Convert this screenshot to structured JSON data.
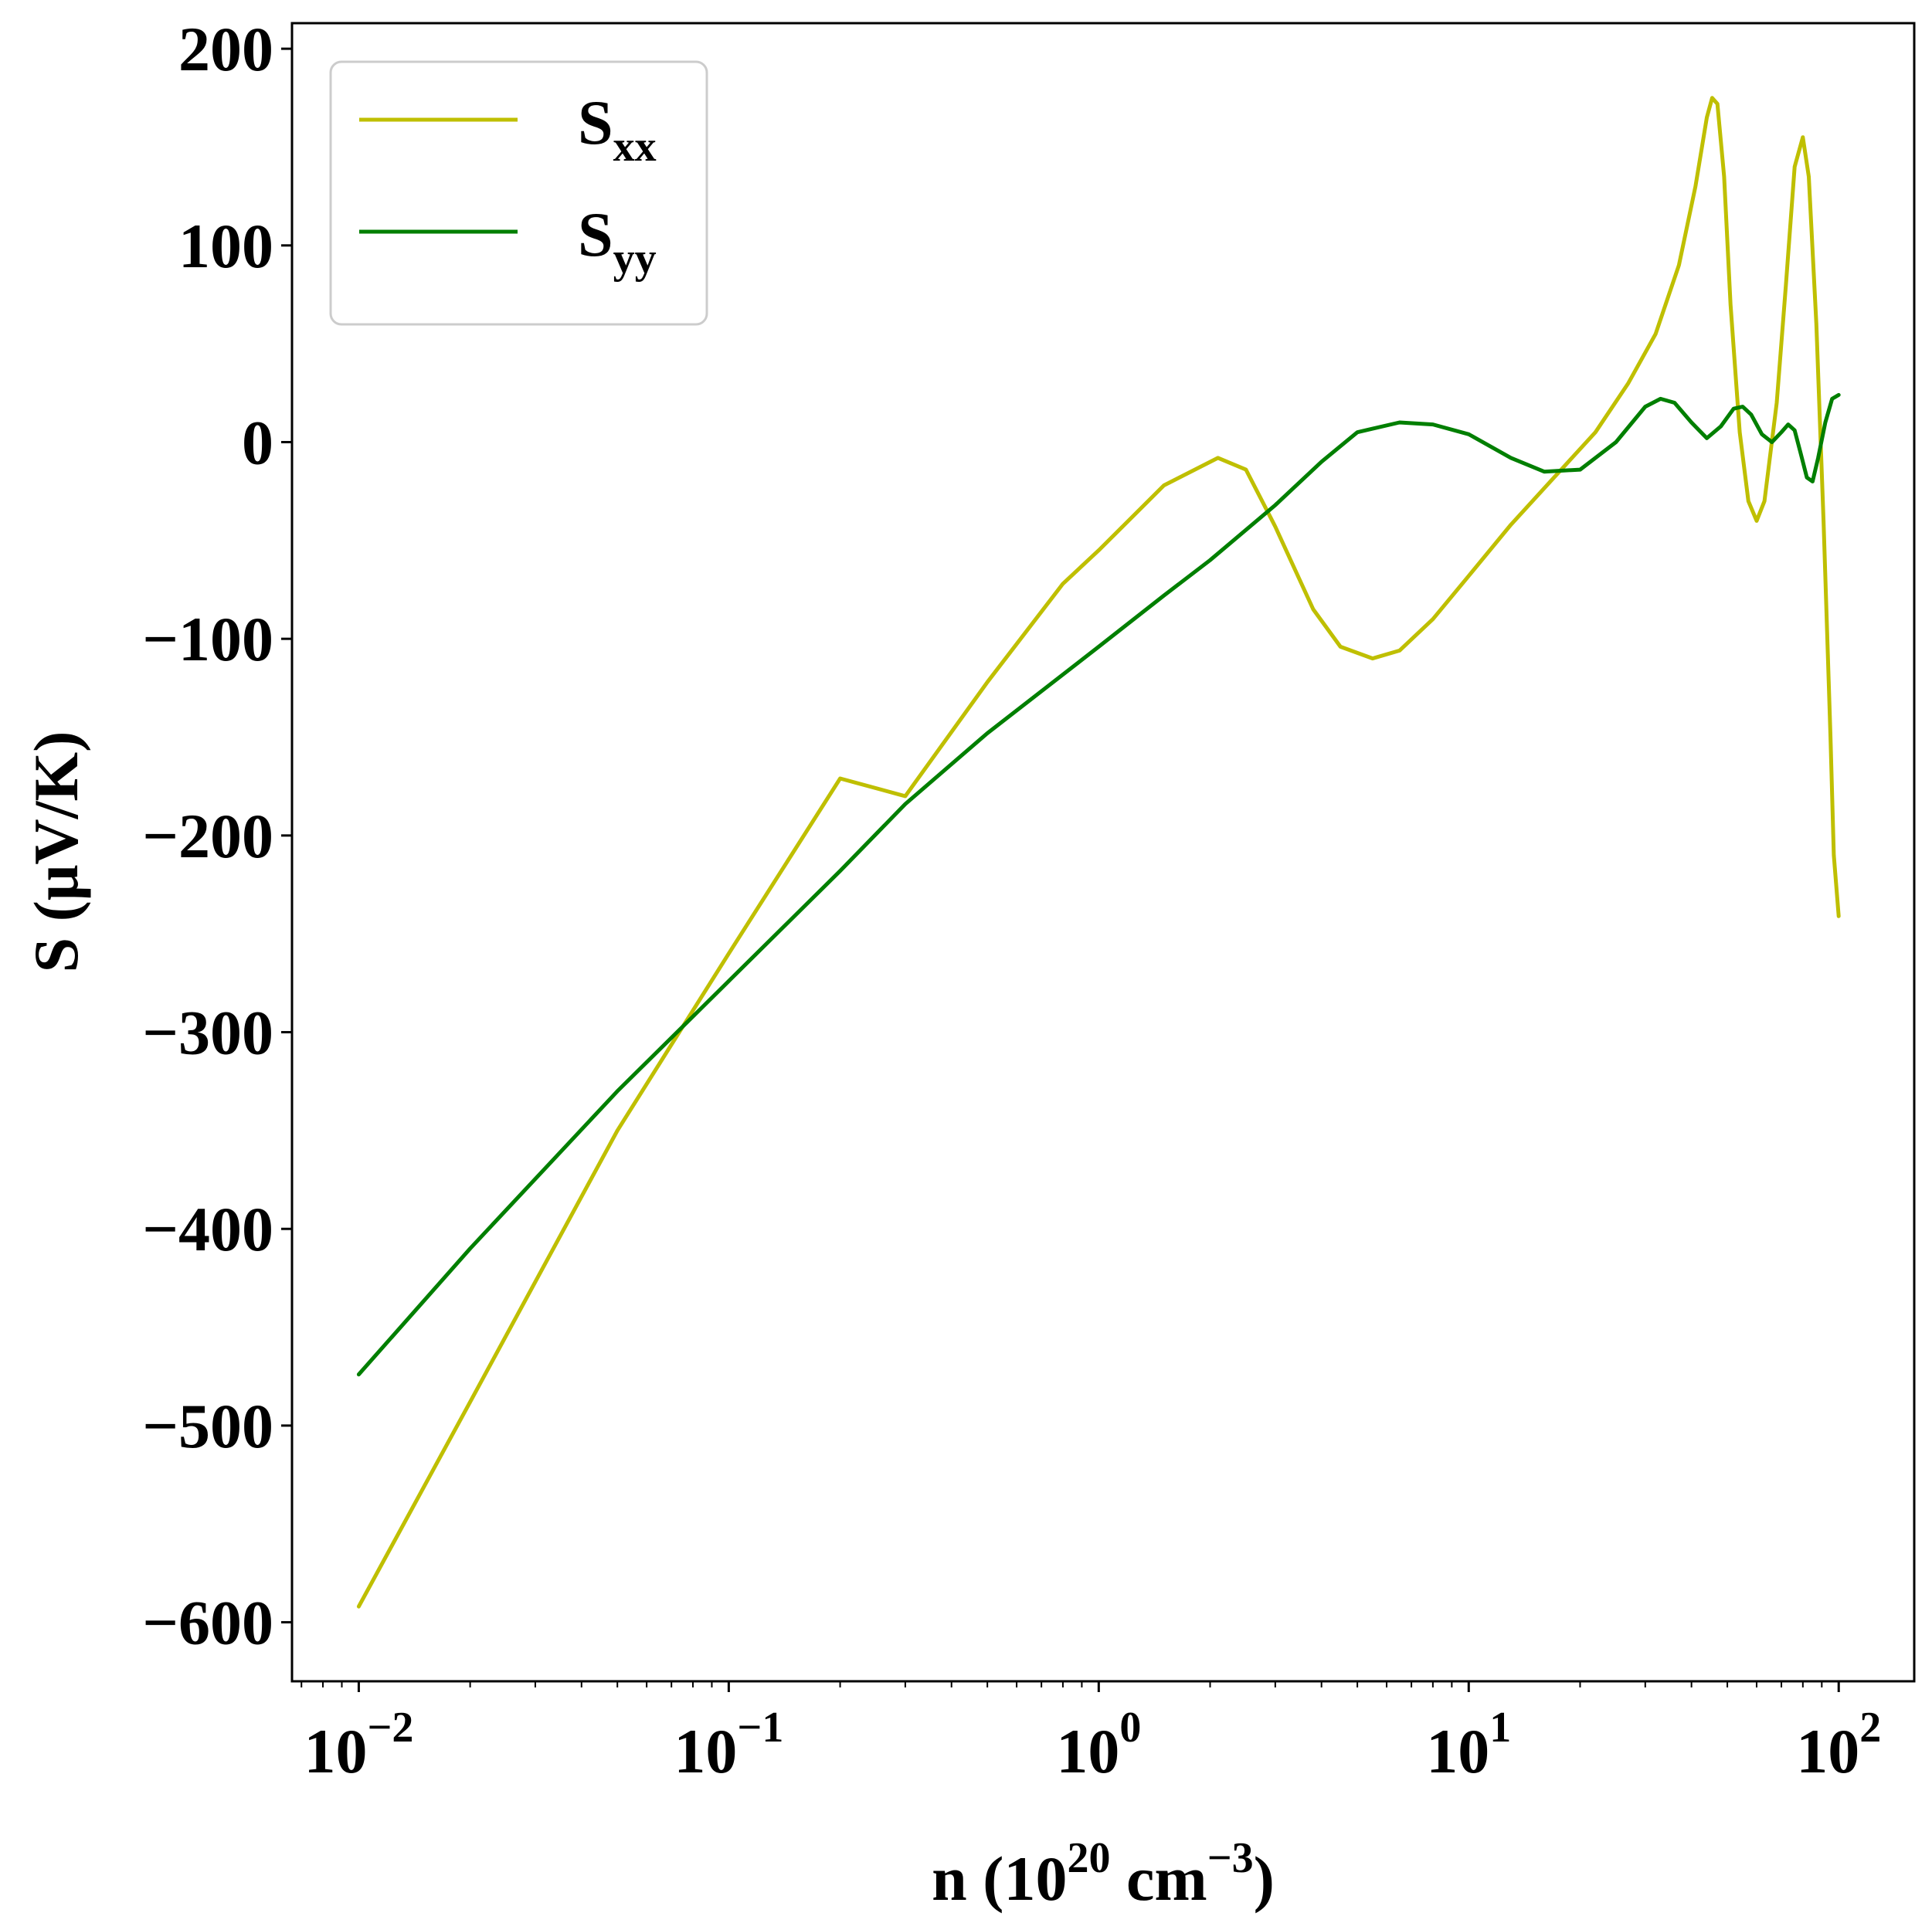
{
  "chart_data": {
    "type": "line",
    "title": "",
    "xlabel": {
      "main": "n (10",
      "sup": "20",
      "middle": " cm",
      "sup2": "−3",
      "end": ")"
    },
    "ylabel": "S (μV/K)",
    "xscale": "log",
    "xlim": [
      0.0066,
      160
    ],
    "ylim": [
      -630,
      213
    ],
    "x_ticks": [
      {
        "value": 0.01,
        "base": "10",
        "exp": "−2"
      },
      {
        "value": 0.1,
        "base": "10",
        "exp": "−1"
      },
      {
        "value": 1,
        "base": "10",
        "exp": "0"
      },
      {
        "value": 10,
        "base": "10",
        "exp": "1"
      },
      {
        "value": 100,
        "base": "10",
        "exp": "2"
      }
    ],
    "y_ticks": [
      {
        "value": 200,
        "label": "200"
      },
      {
        "value": 100,
        "label": "100"
      },
      {
        "value": 0,
        "label": "0"
      },
      {
        "value": -100,
        "label": "−100"
      },
      {
        "value": -200,
        "label": "−200"
      },
      {
        "value": -300,
        "label": "−300"
      },
      {
        "value": -400,
        "label": "−400"
      },
      {
        "value": -500,
        "label": "−500"
      },
      {
        "value": -600,
        "label": "−600"
      }
    ],
    "legend_position": "top-left",
    "grid": false,
    "series": [
      {
        "name": "S",
        "sub": "xx",
        "color": "#bfbf00",
        "points": [
          [
            0.01,
            -592
          ],
          [
            0.02,
            -488
          ],
          [
            0.05,
            -350
          ],
          [
            0.1,
            -260
          ],
          [
            0.2,
            -171
          ],
          [
            0.3,
            -180
          ],
          [
            0.5,
            -122
          ],
          [
            0.8,
            -72
          ],
          [
            1.0,
            -55
          ],
          [
            1.5,
            -22
          ],
          [
            2.1,
            -8
          ],
          [
            2.5,
            -14
          ],
          [
            3.0,
            -43
          ],
          [
            3.8,
            -85
          ],
          [
            4.5,
            -104
          ],
          [
            5.5,
            -110
          ],
          [
            6.5,
            -106
          ],
          [
            8.0,
            -90
          ],
          [
            10,
            -68
          ],
          [
            13,
            -42
          ],
          [
            17,
            -18
          ],
          [
            22,
            5
          ],
          [
            27,
            30
          ],
          [
            32,
            55
          ],
          [
            37,
            90
          ],
          [
            41,
            130
          ],
          [
            44,
            165
          ],
          [
            45.5,
            175
          ],
          [
            47,
            172
          ],
          [
            49,
            135
          ],
          [
            51,
            70
          ],
          [
            54,
            5
          ],
          [
            57,
            -30
          ],
          [
            60,
            -40
          ],
          [
            63,
            -30
          ],
          [
            68,
            20
          ],
          [
            72,
            80
          ],
          [
            76,
            140
          ],
          [
            80,
            155
          ],
          [
            83,
            135
          ],
          [
            87,
            60
          ],
          [
            91,
            -40
          ],
          [
            95,
            -150
          ],
          [
            97,
            -210
          ],
          [
            100,
            -241
          ]
        ]
      },
      {
        "name": "S",
        "sub": "yy",
        "color": "#007f00",
        "points": [
          [
            0.01,
            -474
          ],
          [
            0.02,
            -410
          ],
          [
            0.05,
            -330
          ],
          [
            0.1,
            -274
          ],
          [
            0.2,
            -218
          ],
          [
            0.3,
            -184
          ],
          [
            0.5,
            -148
          ],
          [
            1.0,
            -104
          ],
          [
            1.5,
            -78
          ],
          [
            2.0,
            -60
          ],
          [
            3.0,
            -32
          ],
          [
            4.0,
            -10
          ],
          [
            5.0,
            5
          ],
          [
            6.5,
            10
          ],
          [
            8.0,
            9
          ],
          [
            10,
            4
          ],
          [
            13,
            -8
          ],
          [
            16,
            -15
          ],
          [
            20,
            -14
          ],
          [
            25,
            0
          ],
          [
            30,
            18
          ],
          [
            33,
            22
          ],
          [
            36,
            20
          ],
          [
            40,
            10
          ],
          [
            44,
            2
          ],
          [
            48,
            8
          ],
          [
            52,
            17
          ],
          [
            55,
            18
          ],
          [
            58,
            14
          ],
          [
            62,
            4
          ],
          [
            66,
            0
          ],
          [
            70,
            5
          ],
          [
            73,
            9
          ],
          [
            76,
            6
          ],
          [
            79,
            -6
          ],
          [
            82,
            -18
          ],
          [
            85,
            -20
          ],
          [
            88,
            -8
          ],
          [
            92,
            10
          ],
          [
            96,
            22
          ],
          [
            100,
            24
          ]
        ]
      }
    ]
  }
}
